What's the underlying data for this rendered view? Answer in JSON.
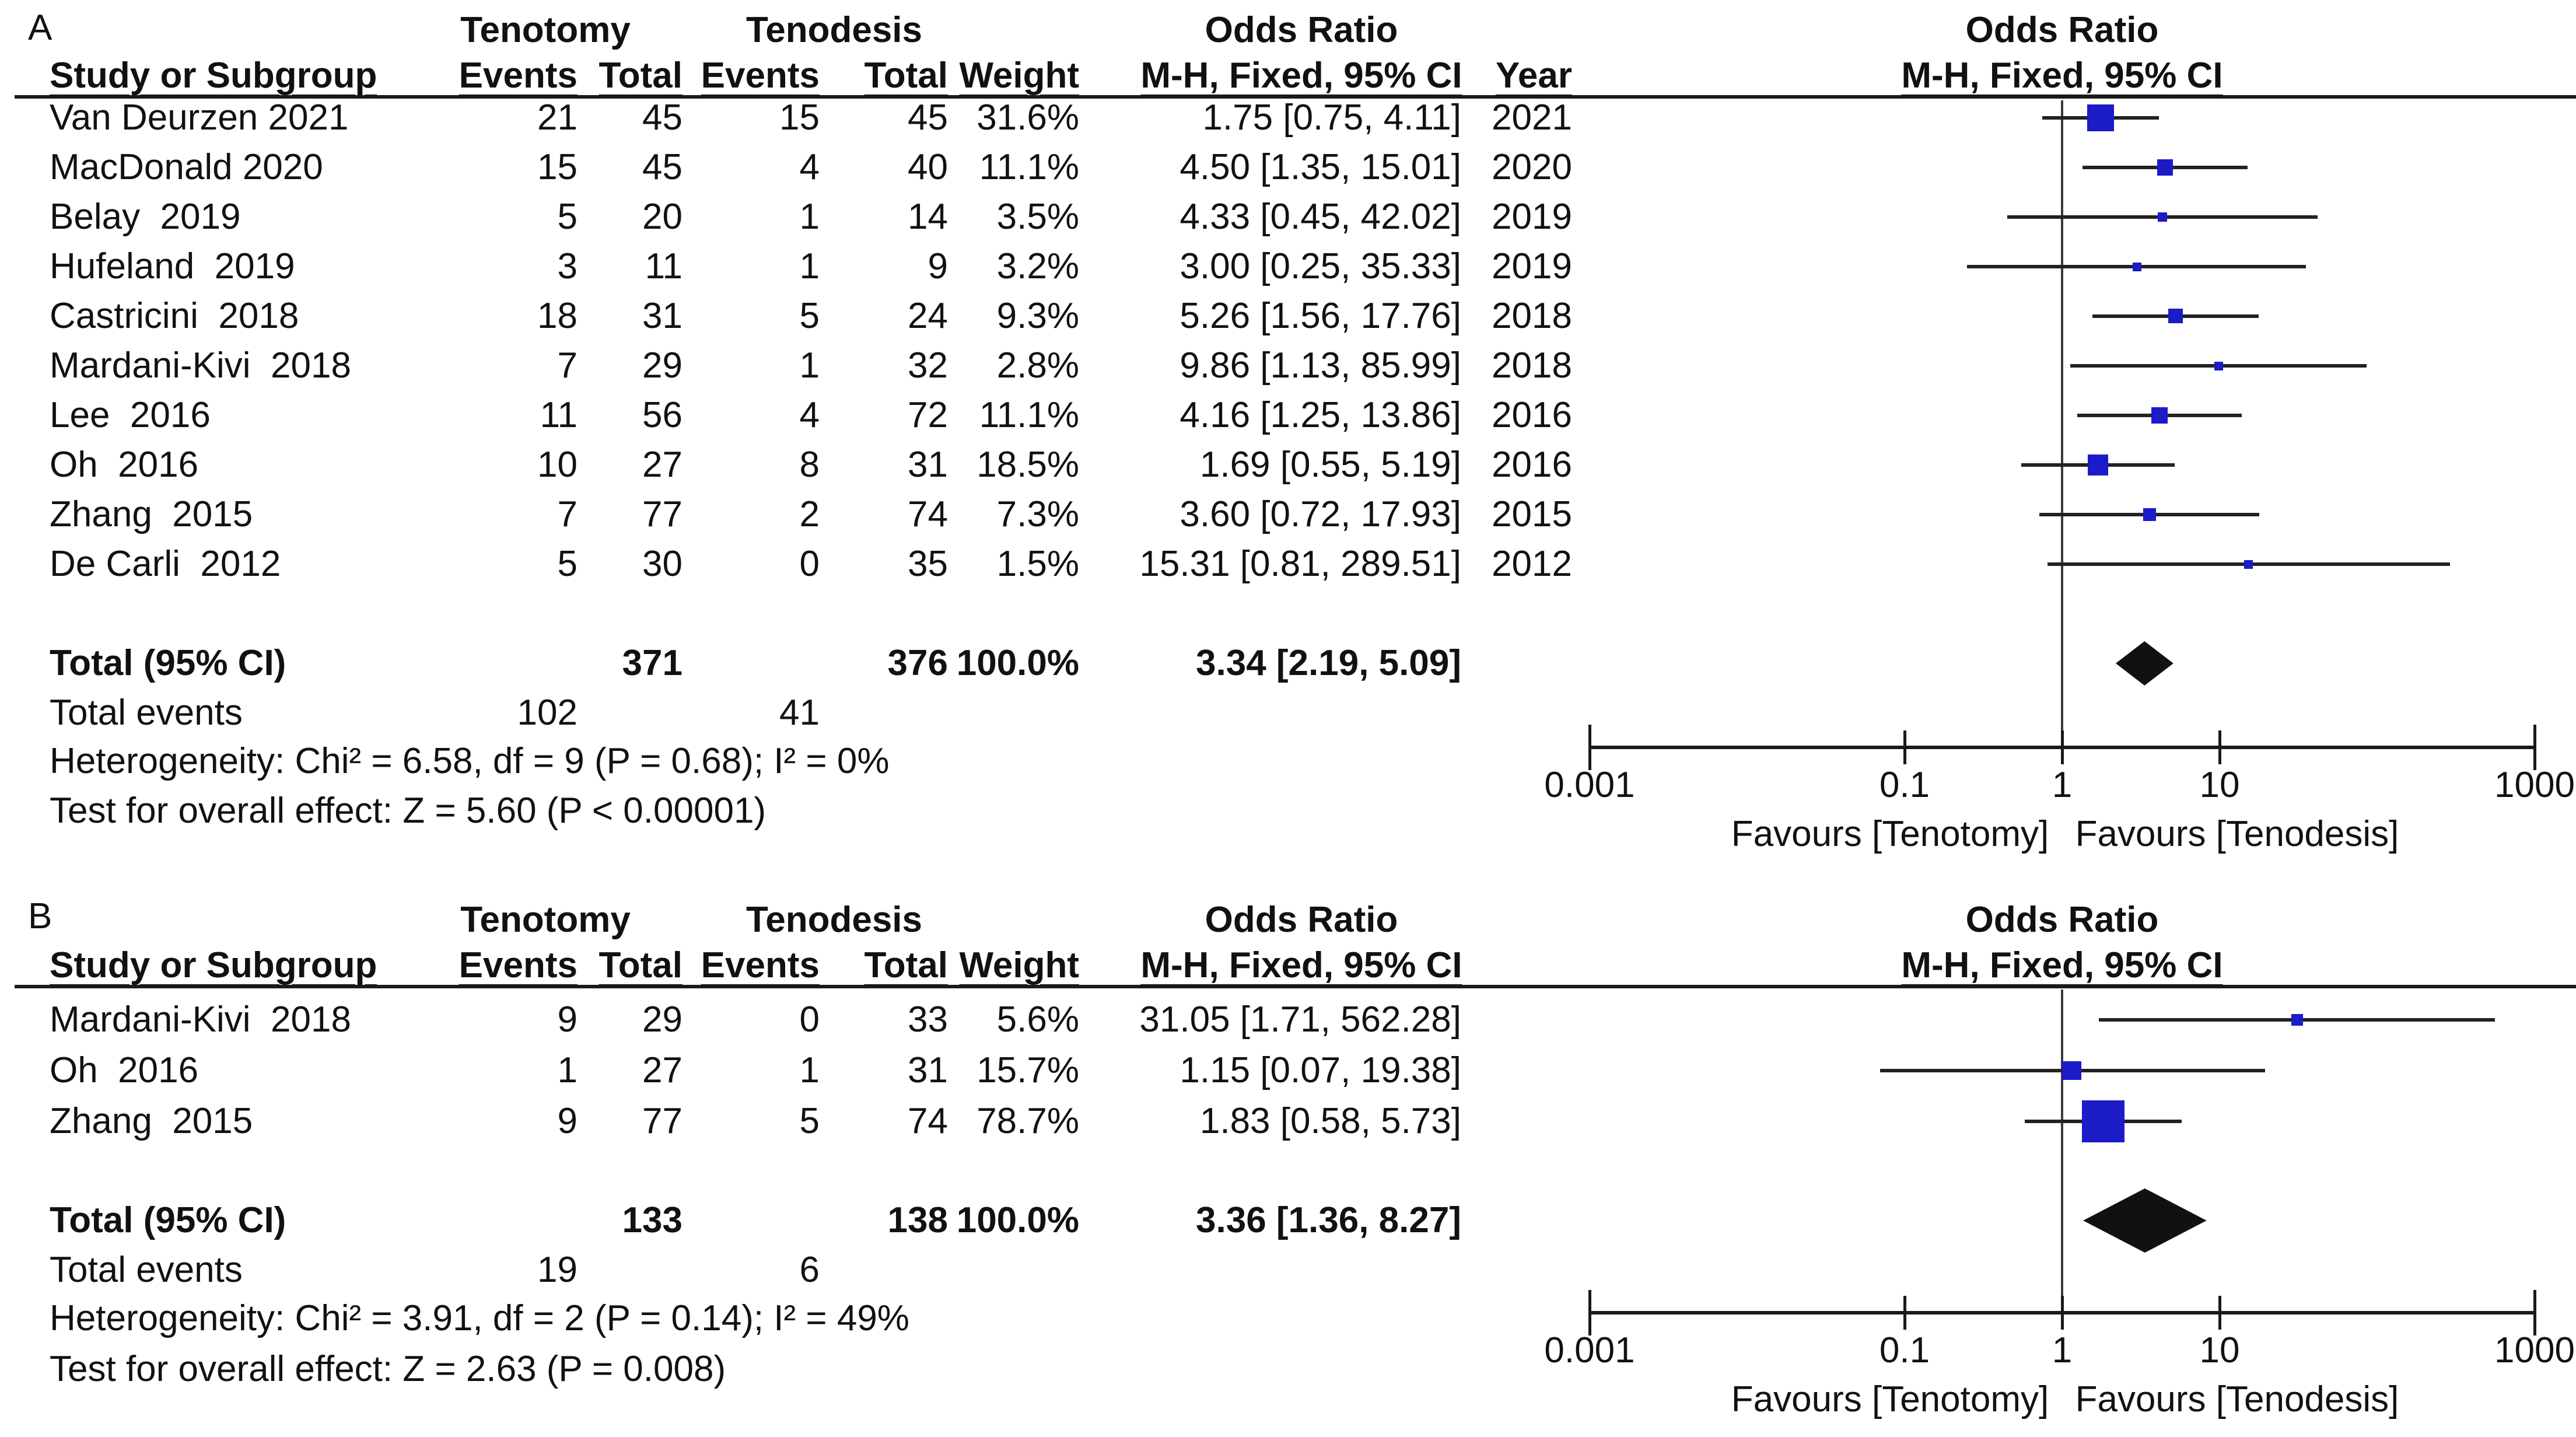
{
  "figure": {
    "panel_a_label": "A",
    "panel_b_label": "B",
    "headers": {
      "study": "Study or Subgroup",
      "group1": "Tenotomy",
      "group2": "Tenodesis",
      "events": "Events",
      "total": "Total",
      "weight": "Weight",
      "odds_ratio": "Odds Ratio",
      "mh_fixed": "M-H, Fixed, 95% CI",
      "year": "Year"
    },
    "labels": {
      "total_ci": "Total (95% CI)",
      "total_events": "Total events",
      "favours_left": "Favours [Tenotomy]",
      "favours_right": "Favours [Tenodesis]"
    },
    "colors": {
      "marker_blue": "#1b1bc8",
      "diamond_black": "#111111",
      "text": "#111111"
    }
  },
  "chart_data": [
    {
      "type": "scatter",
      "subtype": "forest-plot",
      "panel": "A",
      "title": "Odds Ratio",
      "method": "M-H, Fixed, 95% CI",
      "x_scale": "log",
      "x_ticks": [
        0.001,
        0.1,
        1,
        10,
        1000
      ],
      "x_tick_labels": [
        "0.001",
        "0.1",
        "1",
        "10",
        "1000"
      ],
      "favours_left": "Favours [Tenotomy]",
      "favours_right": "Favours [Tenodesis]",
      "has_year_column": true,
      "studies": [
        {
          "name": "Van Deurzen 2021",
          "t_events": "21",
          "t_total": "45",
          "c_events": "15",
          "c_total": "45",
          "weight": "31.6%",
          "weight_pct": 31.6,
          "or": 1.75,
          "ci_low": 0.75,
          "ci_high": 4.11,
          "or_text": "1.75 [0.75, 4.11]",
          "year": "2021"
        },
        {
          "name": "MacDonald 2020",
          "t_events": "15",
          "t_total": "45",
          "c_events": "4",
          "c_total": "40",
          "weight": "11.1%",
          "weight_pct": 11.1,
          "or": 4.5,
          "ci_low": 1.35,
          "ci_high": 15.01,
          "or_text": "4.50 [1.35, 15.01]",
          "year": "2020"
        },
        {
          "name": "Belay  2019",
          "t_events": "5",
          "t_total": "20",
          "c_events": "1",
          "c_total": "14",
          "weight": "3.5%",
          "weight_pct": 3.5,
          "or": 4.33,
          "ci_low": 0.45,
          "ci_high": 42.02,
          "or_text": "4.33 [0.45, 42.02]",
          "year": "2019"
        },
        {
          "name": "Hufeland  2019",
          "t_events": "3",
          "t_total": "11",
          "c_events": "1",
          "c_total": "9",
          "weight": "3.2%",
          "weight_pct": 3.2,
          "or": 3.0,
          "ci_low": 0.25,
          "ci_high": 35.33,
          "or_text": "3.00 [0.25, 35.33]",
          "year": "2019"
        },
        {
          "name": "Castricini  2018",
          "t_events": "18",
          "t_total": "31",
          "c_events": "5",
          "c_total": "24",
          "weight": "9.3%",
          "weight_pct": 9.3,
          "or": 5.26,
          "ci_low": 1.56,
          "ci_high": 17.76,
          "or_text": "5.26 [1.56, 17.76]",
          "year": "2018"
        },
        {
          "name": "Mardani-Kivi  2018",
          "t_events": "7",
          "t_total": "29",
          "c_events": "1",
          "c_total": "32",
          "weight": "2.8%",
          "weight_pct": 2.8,
          "or": 9.86,
          "ci_low": 1.13,
          "ci_high": 85.99,
          "or_text": "9.86 [1.13, 85.99]",
          "year": "2018"
        },
        {
          "name": "Lee  2016",
          "t_events": "11",
          "t_total": "56",
          "c_events": "4",
          "c_total": "72",
          "weight": "11.1%",
          "weight_pct": 11.1,
          "or": 4.16,
          "ci_low": 1.25,
          "ci_high": 13.86,
          "or_text": "4.16 [1.25, 13.86]",
          "year": "2016"
        },
        {
          "name": "Oh  2016",
          "t_events": "10",
          "t_total": "27",
          "c_events": "8",
          "c_total": "31",
          "weight": "18.5%",
          "weight_pct": 18.5,
          "or": 1.69,
          "ci_low": 0.55,
          "ci_high": 5.19,
          "or_text": "1.69 [0.55, 5.19]",
          "year": "2016"
        },
        {
          "name": "Zhang  2015",
          "t_events": "7",
          "t_total": "77",
          "c_events": "2",
          "c_total": "74",
          "weight": "7.3%",
          "weight_pct": 7.3,
          "or": 3.6,
          "ci_low": 0.72,
          "ci_high": 17.93,
          "or_text": "3.60 [0.72, 17.93]",
          "year": "2015"
        },
        {
          "name": "De Carli  2012",
          "t_events": "5",
          "t_total": "30",
          "c_events": "0",
          "c_total": "35",
          "weight": "1.5%",
          "weight_pct": 1.5,
          "or": 15.31,
          "ci_low": 0.81,
          "ci_high": 289.51,
          "or_text": "15.31 [0.81, 289.51]",
          "year": "2012"
        }
      ],
      "total": {
        "label": "Total (95% CI)",
        "t_total": "371",
        "c_total": "376",
        "weight": "100.0%",
        "or": 3.34,
        "ci_low": 2.19,
        "ci_high": 5.09,
        "or_text": "3.34 [2.19, 5.09]"
      },
      "total_events": {
        "label": "Total events",
        "t": "102",
        "c": "41"
      },
      "heterogeneity": "Heterogeneity: Chi² = 6.58, df = 9 (P = 0.68); I² = 0%",
      "overall_effect": "Test for overall effect: Z = 5.60 (P < 0.00001)"
    },
    {
      "type": "scatter",
      "subtype": "forest-plot",
      "panel": "B",
      "title": "Odds Ratio",
      "method": "M-H, Fixed, 95% CI",
      "x_scale": "log",
      "x_ticks": [
        0.001,
        0.1,
        1,
        10,
        1000
      ],
      "x_tick_labels": [
        "0.001",
        "0.1",
        "1",
        "10",
        "1000"
      ],
      "favours_left": "Favours [Tenotomy]",
      "favours_right": "Favours [Tenodesis]",
      "has_year_column": false,
      "studies": [
        {
          "name": "Mardani-Kivi  2018",
          "t_events": "9",
          "t_total": "29",
          "c_events": "0",
          "c_total": "33",
          "weight": "5.6%",
          "weight_pct": 5.6,
          "or": 31.05,
          "ci_low": 1.71,
          "ci_high": 562.28,
          "or_text": "31.05 [1.71, 562.28]",
          "year": ""
        },
        {
          "name": "Oh  2016",
          "t_events": "1",
          "t_total": "27",
          "c_events": "1",
          "c_total": "31",
          "weight": "15.7%",
          "weight_pct": 15.7,
          "or": 1.15,
          "ci_low": 0.07,
          "ci_high": 19.38,
          "or_text": "1.15 [0.07, 19.38]",
          "year": ""
        },
        {
          "name": "Zhang  2015",
          "t_events": "9",
          "t_total": "77",
          "c_events": "5",
          "c_total": "74",
          "weight": "78.7%",
          "weight_pct": 78.7,
          "or": 1.83,
          "ci_low": 0.58,
          "ci_high": 5.73,
          "or_text": "1.83 [0.58, 5.73]",
          "year": ""
        }
      ],
      "total": {
        "label": "Total (95% CI)",
        "t_total": "133",
        "c_total": "138",
        "weight": "100.0%",
        "or": 3.36,
        "ci_low": 1.36,
        "ci_high": 8.27,
        "or_text": "3.36 [1.36, 8.27]"
      },
      "total_events": {
        "label": "Total events",
        "t": "19",
        "c": "6"
      },
      "heterogeneity": "Heterogeneity: Chi² = 3.91, df = 2 (P = 0.14); I² = 49%",
      "overall_effect": "Test for overall effect: Z = 2.63 (P = 0.008)"
    }
  ]
}
